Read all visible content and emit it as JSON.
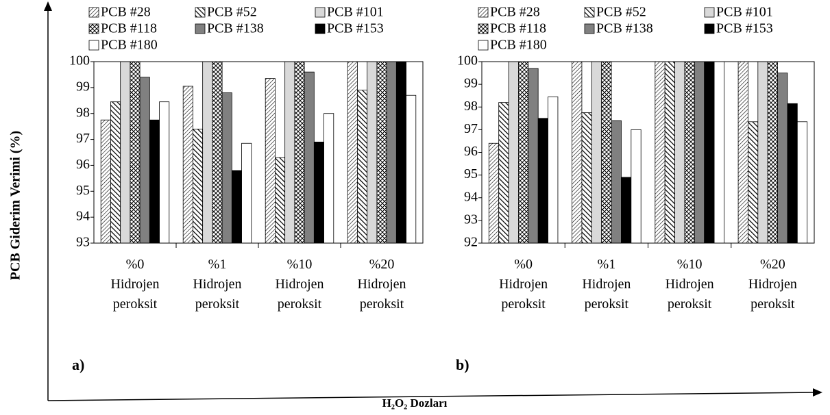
{
  "ylabel": "PCB Giderim Verimi (%)",
  "xlabel": "H₂O₂ Dozları",
  "chart_data": [
    {
      "type": "bar",
      "panel": "a)",
      "categories": [
        "%0 Hidrojen peroksit",
        "%1 Hidrojen peroksit",
        "%10 Hidrojen peroksit",
        "%20 Hidrojen peroksit"
      ],
      "ylim": [
        93,
        100
      ],
      "yticks": [
        93,
        94,
        95,
        96,
        97,
        98,
        99,
        100
      ],
      "series": [
        {
          "name": "PCB #28",
          "fill": "fine-hatch",
          "color": "#000000",
          "values": [
            97.75,
            99.05,
            99.35,
            100
          ]
        },
        {
          "name": "PCB #52",
          "fill": "bold-hatch",
          "color": "#000000",
          "values": [
            98.45,
            97.4,
            96.3,
            98.9
          ]
        },
        {
          "name": "PCB #101",
          "fill": "solid",
          "color": "#d9d9d9",
          "values": [
            100,
            100,
            100,
            100
          ]
        },
        {
          "name": "PCB #118",
          "fill": "checker",
          "color": "#000000",
          "values": [
            100,
            100,
            100,
            100
          ]
        },
        {
          "name": "PCB #138",
          "fill": "solid",
          "color": "#808080",
          "values": [
            99.4,
            98.8,
            99.6,
            100
          ]
        },
        {
          "name": "PCB #153",
          "fill": "solid",
          "color": "#000000",
          "values": [
            97.75,
            95.8,
            96.9,
            100
          ]
        },
        {
          "name": "PCB #180",
          "fill": "solid",
          "color": "#ffffff",
          "values": [
            98.45,
            96.85,
            98.0,
            98.7
          ]
        }
      ]
    },
    {
      "type": "bar",
      "panel": "b)",
      "categories": [
        "%0 Hidrojen peroksit",
        "%1 Hidrojen peroksit",
        "%10 Hidrojen peroksit",
        "%20 Hidrojen peroksit"
      ],
      "ylim": [
        92,
        100
      ],
      "yticks": [
        92,
        93,
        94,
        95,
        96,
        97,
        98,
        99,
        100
      ],
      "series": [
        {
          "name": "PCB #28",
          "fill": "fine-hatch",
          "color": "#000000",
          "values": [
            96.4,
            100,
            100,
            100
          ]
        },
        {
          "name": "PCB #52",
          "fill": "bold-hatch",
          "color": "#000000",
          "values": [
            98.2,
            97.75,
            100,
            97.35
          ]
        },
        {
          "name": "PCB #101",
          "fill": "solid",
          "color": "#d9d9d9",
          "values": [
            100,
            100,
            100,
            100
          ]
        },
        {
          "name": "PCB #118",
          "fill": "checker",
          "color": "#000000",
          "values": [
            100,
            100,
            100,
            100
          ]
        },
        {
          "name": "PCB #138",
          "fill": "solid",
          "color": "#808080",
          "values": [
            99.7,
            97.4,
            100,
            99.5
          ]
        },
        {
          "name": "PCB #153",
          "fill": "solid",
          "color": "#000000",
          "values": [
            97.5,
            94.9,
            100,
            98.15
          ]
        },
        {
          "name": "PCB #180",
          "fill": "solid",
          "color": "#ffffff",
          "values": [
            98.45,
            97.0,
            100,
            97.35
          ]
        }
      ]
    }
  ]
}
